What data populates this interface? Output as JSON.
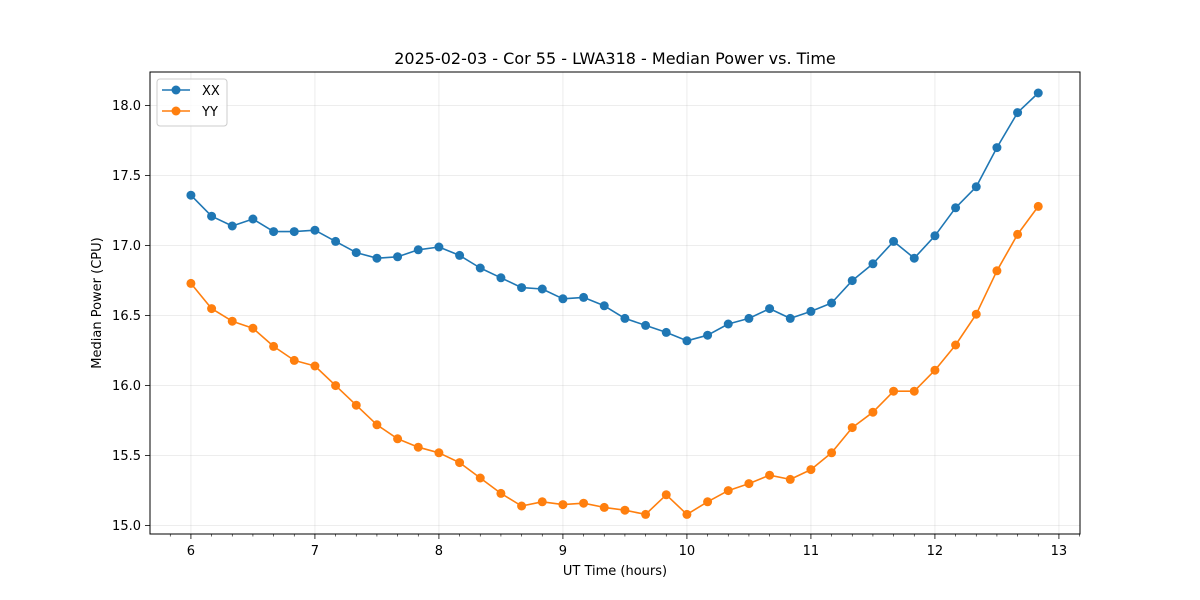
{
  "chart_data": {
    "type": "line",
    "title": "2025-02-03 - Cor 55 - LWA318 - Median Power vs. Time",
    "xlabel": "UT Time (hours)",
    "ylabel": "Median Power (CPU)",
    "xlim": [
      5.67,
      13.17
    ],
    "ylim": [
      14.94,
      18.24
    ],
    "xticks": [
      6,
      7,
      8,
      9,
      10,
      11,
      12,
      13
    ],
    "yticks": [
      15.0,
      15.5,
      16.0,
      16.5,
      17.0,
      17.5,
      18.0
    ],
    "grid": true,
    "legend_position": "top-left",
    "x": [
      6.0,
      6.1667,
      6.3333,
      6.5,
      6.6667,
      6.8333,
      7.0,
      7.1667,
      7.3333,
      7.5,
      7.6667,
      7.8333,
      8.0,
      8.1667,
      8.3333,
      8.5,
      8.6667,
      8.8333,
      9.0,
      9.1667,
      9.3333,
      9.5,
      9.6667,
      9.8333,
      10.0,
      10.1667,
      10.3333,
      10.5,
      10.6667,
      10.8333,
      11.0,
      11.1667,
      11.3333,
      11.5,
      11.6667,
      11.8333,
      12.0,
      12.1667,
      12.3333,
      12.5,
      12.6667,
      12.8333
    ],
    "series": [
      {
        "name": "XX",
        "color": "#1f77b4",
        "values": [
          17.36,
          17.21,
          17.14,
          17.19,
          17.1,
          17.1,
          17.11,
          17.03,
          16.95,
          16.91,
          16.92,
          16.97,
          16.99,
          16.93,
          16.84,
          16.77,
          16.7,
          16.69,
          16.62,
          16.63,
          16.57,
          16.48,
          16.43,
          16.38,
          16.32,
          16.36,
          16.44,
          16.48,
          16.55,
          16.48,
          16.53,
          16.59,
          16.75,
          16.87,
          17.03,
          16.91,
          17.07,
          17.27,
          17.42,
          17.7,
          17.95,
          18.09
        ]
      },
      {
        "name": "YY",
        "color": "#ff7f0e",
        "values": [
          16.73,
          16.55,
          16.46,
          16.41,
          16.28,
          16.18,
          16.14,
          16.0,
          15.86,
          15.72,
          15.62,
          15.56,
          15.52,
          15.45,
          15.34,
          15.23,
          15.14,
          15.17,
          15.15,
          15.16,
          15.13,
          15.11,
          15.08,
          15.22,
          15.08,
          15.17,
          15.25,
          15.3,
          15.36,
          15.33,
          15.4,
          15.52,
          15.7,
          15.81,
          15.96,
          15.96,
          16.11,
          16.29,
          16.51,
          16.82,
          17.08,
          17.28
        ]
      }
    ]
  }
}
